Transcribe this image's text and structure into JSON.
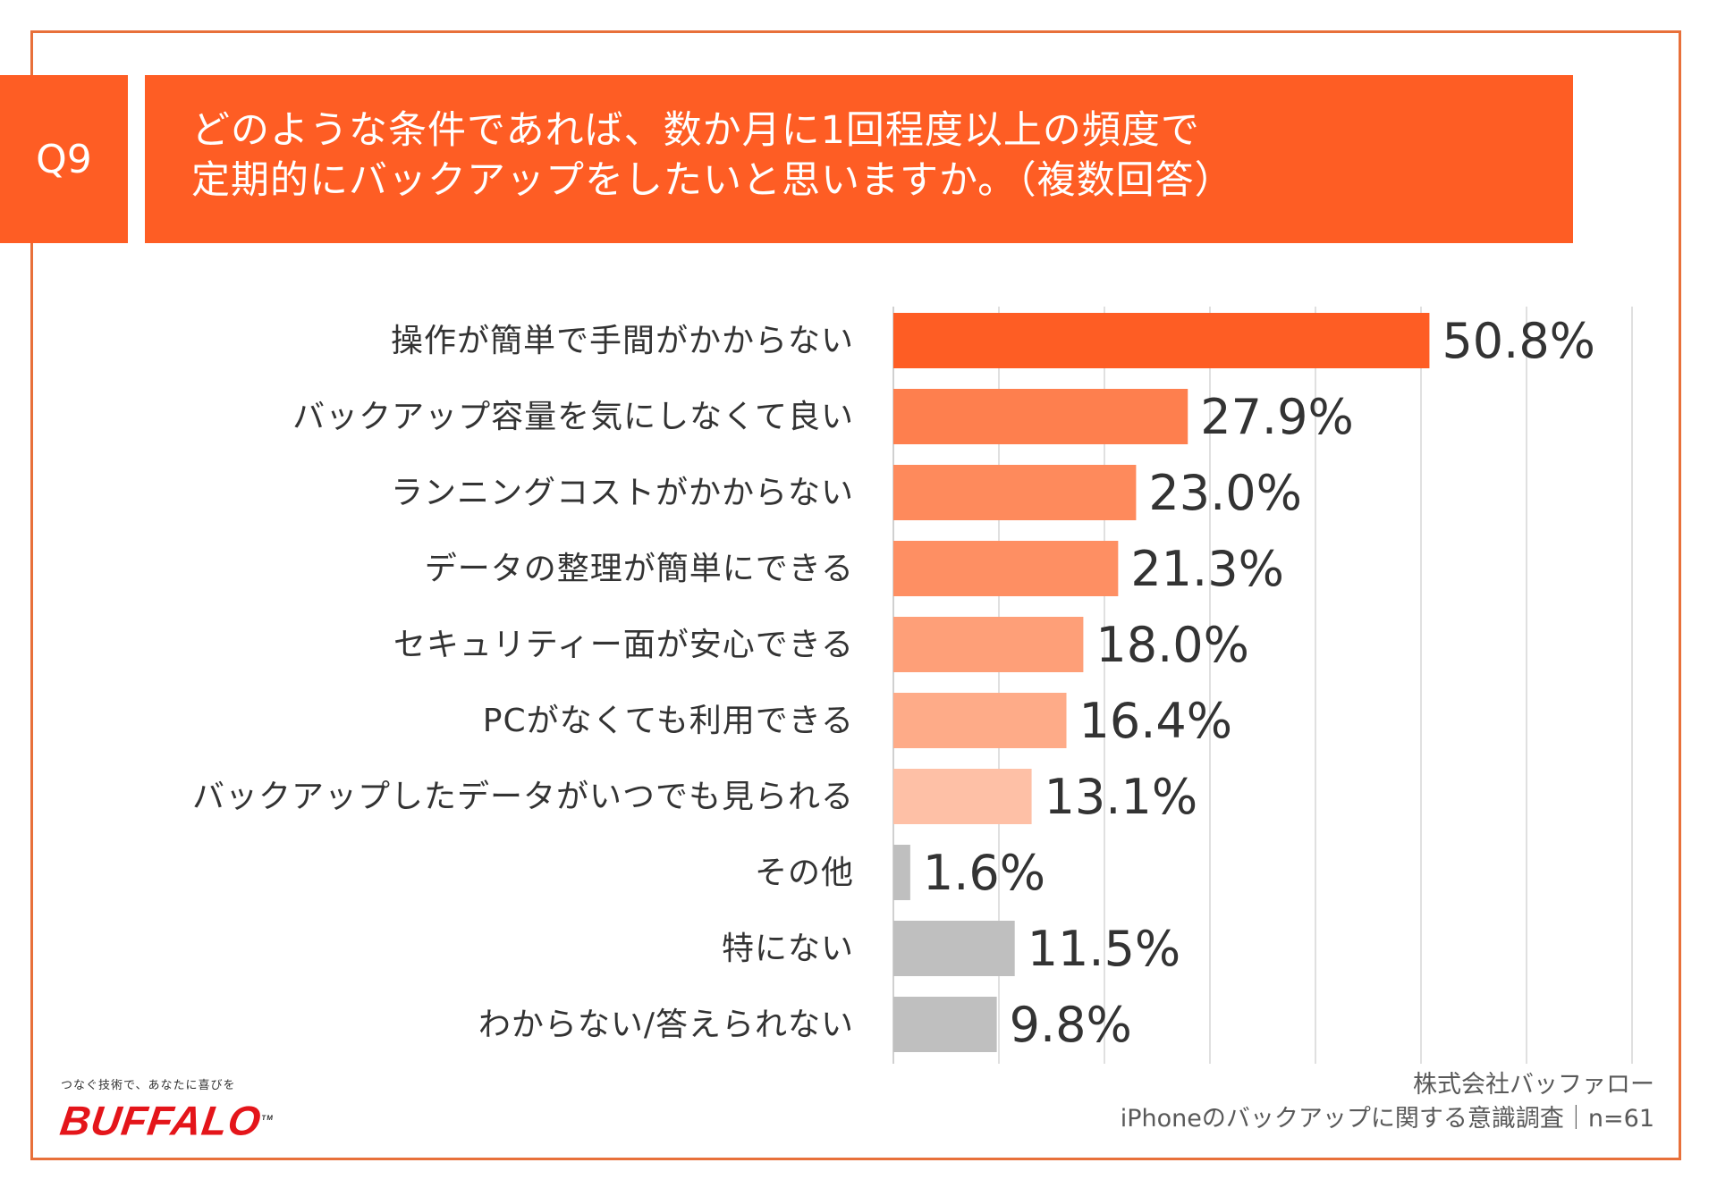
{
  "question": {
    "badge": "Q9",
    "line1": "どのような条件であれば、数か月に1回程度以上の頻度で",
    "line2": "定期的にバックアップをしたいと思いますか。（複数回答）"
  },
  "chart_data": {
    "type": "bar",
    "orientation": "horizontal",
    "categories": [
      "操作が簡単で手間がかからない",
      "バックアップ容量を気にしなくて良い",
      "ランニングコストがかからない",
      "データの整理が簡単にできる",
      "セキュリティー面が安心できる",
      "PCがなくても利用できる",
      "バックアップしたデータがいつでも見られる",
      "その他",
      "特にない",
      "わからない/答えられない"
    ],
    "values": [
      50.8,
      27.9,
      23.0,
      21.3,
      18.0,
      16.4,
      13.1,
      1.6,
      11.5,
      9.8
    ],
    "value_labels": [
      "50.8%",
      "27.9%",
      "23.0%",
      "21.3%",
      "18.0%",
      "16.4%",
      "13.1%",
      "1.6%",
      "11.5%",
      "9.8%"
    ],
    "colors": [
      "#fe5d24",
      "#fe7f4e",
      "#fe8a5c",
      "#fe8f63",
      "#fe9f78",
      "#feab88",
      "#fec0a6",
      "#bfbfbf",
      "#bfbfbf",
      "#bfbfbf"
    ],
    "xlim": [
      0,
      70
    ],
    "grid": true,
    "unit": "%"
  },
  "brand": {
    "tagline": "つなぐ技術で、あなたに喜びを",
    "logo": "BUFFALO",
    "tm": "TM"
  },
  "source": {
    "line1": "株式会社バッファロー",
    "line2": "iPhoneのバックアップに関する意識調査｜n=61"
  }
}
